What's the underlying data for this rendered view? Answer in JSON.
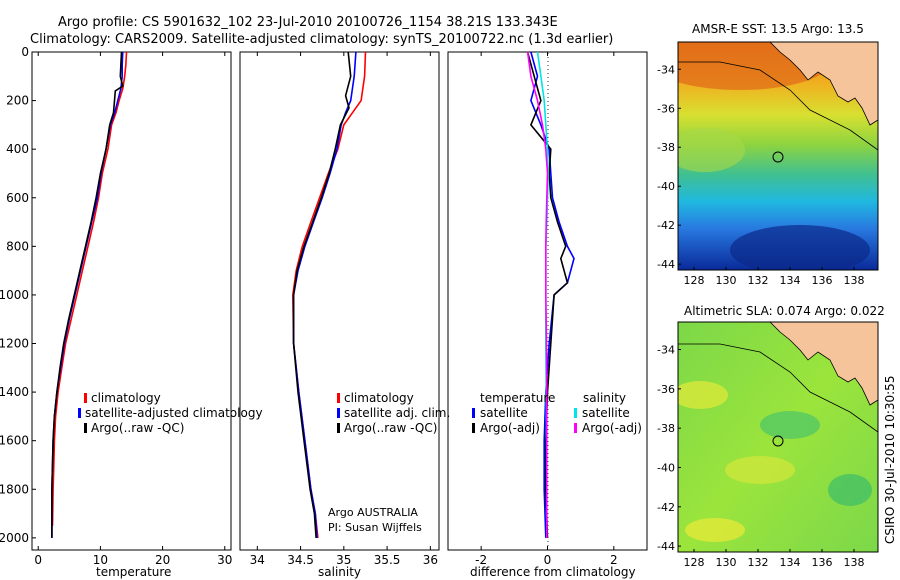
{
  "header": {
    "line1": "Argo profile: CS 5901632_102 23-Jul-2010 20100726_1154 38.21S 133.343E",
    "line2": "Climatology: CARS2009. Satellite-adjusted climatology: synTS_20100722.nc (1.3d earlier)"
  },
  "side_text": "CSIRO 30-Jul-2010 10:30:55",
  "chart_data": [
    {
      "id": "temperature",
      "type": "line",
      "xlabel": "temperature",
      "ylabel": "",
      "xlim": [
        -1,
        31
      ],
      "ylim": [
        2050,
        0
      ],
      "xticks": [
        "0",
        "10",
        "20",
        "30"
      ],
      "xtick_values": [
        0,
        10,
        20,
        30
      ],
      "yticks": [
        "0",
        "200",
        "400",
        "600",
        "800",
        "1000",
        "1200",
        "1400",
        "1600",
        "1800",
        "2000"
      ],
      "ytick_values": [
        0,
        200,
        400,
        600,
        800,
        1000,
        1200,
        1400,
        1600,
        1800,
        2000
      ],
      "legend": [
        "climatology",
        "satellite-adjusted climatology",
        "Argo(..raw -QC)"
      ],
      "series": [
        {
          "name": "climatology",
          "color": "#ff0000",
          "x": [
            14.2,
            14.1,
            13.9,
            13.6,
            13.0,
            12.5,
            11.8,
            11.2,
            10.3,
            9.7,
            8.9,
            8.0,
            7.1,
            6.2,
            5.3,
            4.4,
            3.8,
            3.2,
            2.8,
            2.6,
            2.5,
            2.4,
            2.3
          ],
          "y": [
            0,
            50,
            100,
            150,
            200,
            250,
            300,
            400,
            500,
            600,
            700,
            800,
            900,
            1000,
            1100,
            1200,
            1300,
            1400,
            1500,
            1600,
            1700,
            1800,
            1950
          ]
        },
        {
          "name": "satellite-adjusted climatology",
          "color": "#0000ff",
          "x": [
            13.6,
            13.5,
            13.5,
            13.3,
            12.8,
            12.3,
            11.6,
            10.9,
            10.1,
            9.5,
            8.6,
            7.7,
            6.8,
            5.9,
            5.0,
            4.2,
            3.6,
            3.0,
            2.6,
            2.4,
            2.3,
            2.2,
            2.2
          ],
          "y": [
            0,
            50,
            100,
            150,
            200,
            250,
            300,
            400,
            500,
            600,
            700,
            800,
            900,
            1000,
            1100,
            1200,
            1300,
            1400,
            1500,
            1600,
            1700,
            1800,
            2000
          ]
        },
        {
          "name": "Argo(..raw -QC)",
          "color": "#000000",
          "x": [
            13.4,
            13.3,
            13.2,
            13.6,
            12.4,
            12.1,
            11.5,
            10.9,
            10.0,
            9.3,
            8.5,
            7.6,
            6.7,
            5.8,
            4.9,
            4.1,
            3.5,
            3.0,
            2.6,
            2.4,
            2.3,
            2.2,
            2.2
          ],
          "y": [
            0,
            50,
            100,
            140,
            160,
            250,
            300,
            400,
            500,
            600,
            700,
            800,
            900,
            1000,
            1100,
            1200,
            1300,
            1400,
            1500,
            1600,
            1700,
            1800,
            2000
          ]
        }
      ]
    },
    {
      "id": "salinity",
      "type": "line",
      "xlabel": "salinity",
      "xlim": [
        33.8,
        36.1
      ],
      "ylim": [
        2050,
        0
      ],
      "xticks": [
        "34",
        "34.5",
        "35",
        "35.5",
        "36"
      ],
      "xtick_values": [
        34,
        34.5,
        35,
        35.5,
        36
      ],
      "legend": [
        "climatology",
        "satellite adj. clim.",
        "Argo(..raw -QC)"
      ],
      "annotation": [
        "Argo AUSTRALIA",
        "PI: Susan Wijffels"
      ],
      "series": [
        {
          "name": "climatology",
          "color": "#ff0000",
          "x": [
            35.25,
            35.24,
            35.2,
            35.1,
            35.0,
            34.93,
            34.82,
            34.72,
            34.62,
            34.52,
            34.45,
            34.41,
            34.42,
            34.48,
            34.55,
            34.62,
            34.67,
            34.7
          ],
          "y": [
            0,
            100,
            200,
            250,
            300,
            400,
            500,
            600,
            700,
            800,
            900,
            1000,
            1200,
            1400,
            1600,
            1800,
            1900,
            2000
          ]
        },
        {
          "name": "satellite adj. clim.",
          "color": "#0000ff",
          "x": [
            35.14,
            35.12,
            35.08,
            35.02,
            34.97,
            34.92,
            34.84,
            34.75,
            34.65,
            34.55,
            34.47,
            34.42,
            34.42,
            34.48,
            34.55,
            34.62,
            34.67,
            34.69
          ],
          "y": [
            0,
            100,
            200,
            250,
            300,
            400,
            500,
            600,
            700,
            800,
            900,
            1000,
            1200,
            1400,
            1600,
            1800,
            1900,
            2000
          ]
        },
        {
          "name": "Argo(..raw -QC)",
          "color": "#000000",
          "x": [
            35.05,
            35.08,
            35.02,
            35.06,
            34.96,
            34.9,
            34.83,
            34.74,
            34.64,
            34.54,
            34.46,
            34.42,
            34.42,
            34.47,
            34.54,
            34.61,
            34.66,
            34.68
          ],
          "y": [
            0,
            100,
            180,
            230,
            300,
            400,
            500,
            600,
            700,
            800,
            900,
            1000,
            1200,
            1400,
            1600,
            1800,
            1900,
            2000
          ]
        }
      ]
    },
    {
      "id": "difference",
      "type": "line",
      "xlabel": "difference from climatology",
      "xlim": [
        -3,
        3
      ],
      "ylim": [
        2050,
        0
      ],
      "xticks": [
        "-2",
        "0",
        "2"
      ],
      "xtick_values": [
        -2,
        0,
        2
      ],
      "legend_temperature": {
        "title": "temperature",
        "items": [
          "satellite",
          "Argo(-adj)"
        ]
      },
      "legend_salinity": {
        "title": "salinity",
        "items": [
          "satellite",
          "Argo(-adj)"
        ]
      },
      "series": [
        {
          "name": "temperature satellite",
          "color": "#0000ff",
          "x": [
            -0.5,
            -0.3,
            -0.5,
            -0.2,
            0.05,
            0.1,
            0.15,
            0.35,
            0.6,
            0.8,
            0.6,
            0.2,
            0.05,
            -0.05,
            -0.1,
            -0.1,
            -0.05
          ],
          "y": [
            0,
            100,
            200,
            300,
            400,
            500,
            600,
            700,
            800,
            850,
            950,
            1000,
            1200,
            1400,
            1600,
            1800,
            2000
          ]
        },
        {
          "name": "temperature Argo(-adj)",
          "color": "#000000",
          "x": [
            -0.6,
            -0.4,
            -0.2,
            -0.5,
            0.1,
            0.05,
            0.1,
            0.3,
            0.55,
            0.4,
            0.6,
            0.2,
            0.1,
            0.0,
            -0.05,
            -0.05,
            0.0
          ],
          "y": [
            0,
            100,
            200,
            300,
            400,
            500,
            600,
            700,
            800,
            850,
            950,
            1000,
            1200,
            1400,
            1600,
            1800,
            2000
          ]
        },
        {
          "name": "salinity satellite",
          "color": "#00e5e5",
          "x": [
            -0.3,
            -0.2,
            -0.1,
            -0.05,
            0.0,
            0.02,
            0.0,
            -0.02,
            -0.05,
            -0.05,
            -0.05,
            -0.03,
            -0.02,
            -0.02
          ],
          "y": [
            0,
            100,
            200,
            300,
            400,
            500,
            600,
            700,
            800,
            1000,
            1200,
            1500,
            1800,
            2000
          ]
        },
        {
          "name": "salinity Argo(-adj)",
          "color": "#ff00ff",
          "x": [
            -0.6,
            -0.5,
            -0.3,
            -0.15,
            -0.05,
            0.0,
            -0.02,
            -0.04,
            -0.05,
            -0.05,
            -0.03,
            -0.02,
            -0.02,
            -0.02
          ],
          "y": [
            0,
            100,
            200,
            300,
            400,
            500,
            600,
            700,
            800,
            1000,
            1200,
            1500,
            1800,
            2000
          ]
        }
      ]
    },
    {
      "id": "sst_map",
      "type": "heatmap",
      "title": "AMSR-E SST: 13.5 Argo: 13.5",
      "xticks": [
        "128",
        "130",
        "132",
        "134",
        "136",
        "138"
      ],
      "yticks": [
        "-34",
        "-36",
        "-38",
        "-40",
        "-42",
        "-44"
      ],
      "float_position": {
        "lon": 133.343,
        "lat": -38.21
      }
    },
    {
      "id": "sla_map",
      "type": "heatmap",
      "title": "Altimetric SLA: 0.074 Argo: 0.022",
      "xticks": [
        "128",
        "130",
        "132",
        "134",
        "136",
        "138"
      ],
      "yticks": [
        "-34",
        "-36",
        "-38",
        "-40",
        "-42",
        "-44"
      ],
      "float_position": {
        "lon": 133.343,
        "lat": -38.21
      }
    }
  ]
}
